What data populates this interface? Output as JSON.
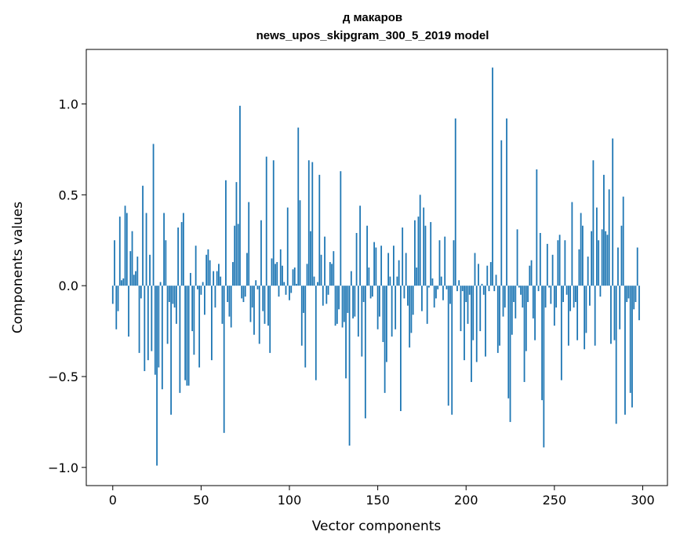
{
  "chart_data": {
    "type": "bar",
    "title_line1": "д макаров",
    "title_line2": "news_upos_skipgram_300_5_2019 model",
    "xlabel": "Vector components",
    "ylabel": "Components values",
    "xlim": [
      -15,
      314
    ],
    "ylim": [
      -1.1,
      1.3
    ],
    "xticks": [
      0,
      50,
      100,
      150,
      200,
      250,
      300
    ],
    "xtick_labels": [
      "0",
      "50",
      "100",
      "150",
      "200",
      "250",
      "300"
    ],
    "yticks": [
      -1.0,
      -0.5,
      0.0,
      0.5,
      1.0
    ],
    "ytick_labels": [
      "−1.0",
      "−0.5",
      "0.0",
      "0.5",
      "1.0"
    ],
    "bar_color": "#1f77b4",
    "values": [
      -0.1,
      0.25,
      -0.24,
      -0.14,
      0.38,
      0.03,
      0.04,
      0.44,
      0.4,
      -0.28,
      0.19,
      0.3,
      0.06,
      0.08,
      0.16,
      -0.37,
      -0.07,
      0.55,
      -0.47,
      0.4,
      -0.41,
      0.17,
      -0.36,
      0.78,
      -0.49,
      -0.99,
      -0.45,
      0.02,
      -0.57,
      0.4,
      0.25,
      -0.32,
      -0.09,
      -0.71,
      -0.1,
      -0.12,
      -0.21,
      0.32,
      -0.59,
      0.35,
      0.4,
      -0.52,
      -0.55,
      -0.55,
      0.07,
      -0.25,
      -0.38,
      0.22,
      -0.02,
      -0.45,
      -0.05,
      0.02,
      -0.16,
      0.17,
      0.2,
      0.14,
      -0.41,
      0.08,
      -0.12,
      0.08,
      0.12,
      0.05,
      -0.21,
      -0.81,
      0.58,
      -0.09,
      -0.17,
      -0.23,
      0.13,
      0.33,
      0.57,
      0.34,
      0.99,
      -0.07,
      -0.09,
      -0.06,
      0.18,
      0.46,
      -0.2,
      -0.12,
      -0.27,
      0.03,
      -0.02,
      -0.32,
      0.36,
      -0.14,
      -0.21,
      0.71,
      -0.22,
      -0.37,
      0.15,
      0.69,
      0.12,
      0.13,
      -0.06,
      0.2,
      0.11,
      0.02,
      -0.05,
      0.43,
      -0.08,
      -0.04,
      0.09,
      0.1,
      0.01,
      0.87,
      0.47,
      -0.33,
      -0.15,
      -0.45,
      0.12,
      0.69,
      0.3,
      0.68,
      0.05,
      -0.52,
      0.02,
      0.61,
      0.17,
      -0.11,
      0.27,
      -0.1,
      -0.05,
      0.13,
      0.12,
      0.19,
      -0.22,
      -0.21,
      -0.13,
      0.63,
      -0.23,
      -0.2,
      -0.51,
      -0.15,
      -0.88,
      0.08,
      -0.18,
      -0.17,
      0.29,
      -0.28,
      0.44,
      -0.39,
      -0.09,
      -0.73,
      0.33,
      0.1,
      -0.07,
      -0.06,
      0.24,
      0.21,
      -0.24,
      -0.17,
      0.22,
      -0.31,
      -0.59,
      -0.42,
      0.18,
      0.05,
      -0.28,
      0.22,
      -0.24,
      0.05,
      0.14,
      -0.69,
      0.32,
      -0.07,
      0.18,
      -0.11,
      -0.34,
      -0.26,
      -0.16,
      0.36,
      0.1,
      0.38,
      0.5,
      -0.14,
      0.43,
      0.33,
      -0.21,
      -0.01,
      0.35,
      0.04,
      -0.12,
      -0.07,
      -0.02,
      0.25,
      0.05,
      -0.08,
      0.27,
      -0.02,
      -0.66,
      -0.1,
      -0.71,
      0.25,
      0.92,
      -0.03,
      0.03,
      -0.25,
      -0.03,
      -0.41,
      -0.09,
      -0.21,
      -0.05,
      -0.53,
      -0.3,
      0.18,
      -0.42,
      0.12,
      -0.25,
      0.01,
      -0.05,
      -0.39,
      0.11,
      -0.03,
      0.13,
      1.2,
      -0.03,
      0.06,
      -0.37,
      -0.33,
      0.8,
      -0.17,
      -0.12,
      0.92,
      -0.62,
      -0.75,
      -0.27,
      -0.09,
      -0.18,
      0.31,
      -0.01,
      -0.05,
      -0.12,
      -0.53,
      -0.36,
      -0.09,
      0.11,
      0.14,
      -0.18,
      -0.3,
      0.64,
      -0.03,
      0.29,
      -0.63,
      -0.89,
      -0.12,
      0.23,
      -0.01,
      -0.1,
      0.17,
      -0.22,
      -0.12,
      0.25,
      0.28,
      -0.52,
      -0.09,
      0.25,
      -0.05,
      -0.33,
      -0.14,
      0.46,
      -0.12,
      -0.09,
      -0.3,
      0.2,
      0.4,
      0.33,
      -0.35,
      -0.26,
      0.16,
      -0.11,
      0.3,
      0.69,
      -0.33,
      0.43,
      0.25,
      -0.06,
      0.31,
      0.61,
      0.3,
      0.28,
      0.53,
      -0.32,
      0.81,
      -0.3,
      -0.76,
      0.21,
      -0.24,
      0.33,
      0.49,
      -0.71,
      -0.09,
      -0.07,
      -0.59,
      -0.67,
      -0.13,
      -0.09,
      0.21,
      -0.19
    ]
  }
}
